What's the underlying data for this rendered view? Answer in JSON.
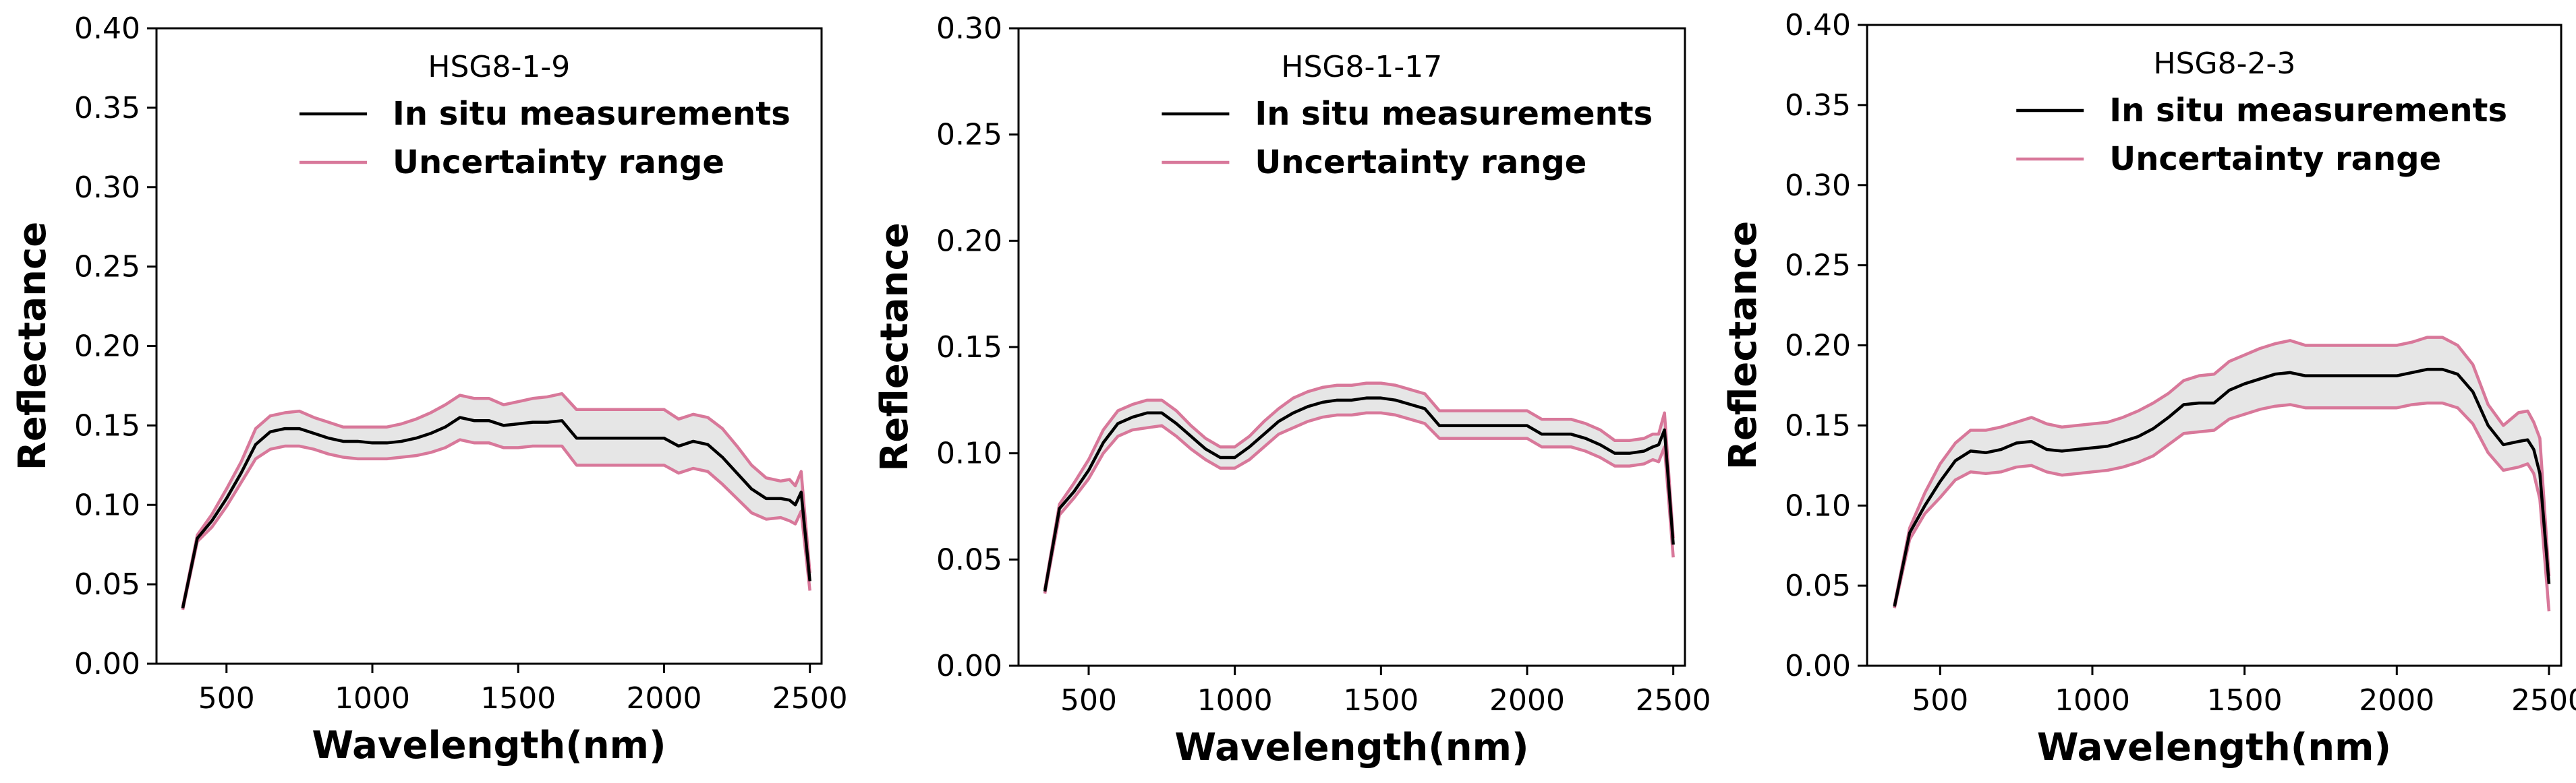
{
  "colors": {
    "measurement": "#000000",
    "uncertainty": "#d8789a",
    "fill": "#e6e6e6"
  },
  "chart_data": [
    {
      "type": "line",
      "title": "HSG8-1-9",
      "xlabel": "Wavelength(nm)",
      "ylabel": "Reflectance",
      "xlim": [
        260,
        2540
      ],
      "ylim": [
        0,
        0.4
      ],
      "xticks": [
        500,
        1000,
        1500,
        2000,
        2500
      ],
      "yticks": [
        0.0,
        0.05,
        0.1,
        0.15,
        0.2,
        0.25,
        0.3,
        0.35,
        0.4
      ],
      "ytick_labels": [
        "0.00",
        "0.05",
        "0.10",
        "0.15",
        "0.20",
        "0.25",
        "0.30",
        "0.35",
        "0.40"
      ],
      "legend": [
        "In situ measurements",
        "Uncertainty range"
      ],
      "legend_position": "top-right",
      "x": [
        350,
        400,
        450,
        500,
        550,
        600,
        650,
        700,
        750,
        800,
        850,
        900,
        950,
        1000,
        1050,
        1100,
        1150,
        1200,
        1250,
        1300,
        1350,
        1400,
        1450,
        1500,
        1550,
        1600,
        1650,
        1700,
        1750,
        1800,
        1850,
        1900,
        1950,
        2000,
        2050,
        2100,
        2150,
        2200,
        2250,
        2300,
        2350,
        2400,
        2430,
        2450,
        2470,
        2500
      ],
      "series": [
        {
          "name": "In situ measurements",
          "values": [
            0.035,
            0.079,
            0.09,
            0.104,
            0.12,
            0.138,
            0.146,
            0.148,
            0.148,
            0.145,
            0.142,
            0.14,
            0.14,
            0.139,
            0.139,
            0.14,
            0.142,
            0.145,
            0.149,
            0.155,
            0.153,
            0.153,
            0.15,
            0.151,
            0.152,
            0.152,
            0.153,
            0.142,
            0.142,
            0.142,
            0.142,
            0.142,
            0.142,
            0.142,
            0.137,
            0.14,
            0.138,
            0.13,
            0.12,
            0.11,
            0.104,
            0.104,
            0.103,
            0.1,
            0.108,
            0.052
          ]
        },
        {
          "name": "Uncertainty upper",
          "values": [
            0.036,
            0.081,
            0.094,
            0.11,
            0.127,
            0.148,
            0.156,
            0.158,
            0.159,
            0.155,
            0.152,
            0.149,
            0.149,
            0.149,
            0.149,
            0.151,
            0.154,
            0.158,
            0.163,
            0.169,
            0.167,
            0.167,
            0.163,
            0.165,
            0.167,
            0.168,
            0.17,
            0.16,
            0.16,
            0.16,
            0.16,
            0.16,
            0.16,
            0.16,
            0.154,
            0.157,
            0.155,
            0.148,
            0.137,
            0.125,
            0.117,
            0.115,
            0.116,
            0.112,
            0.121,
            0.057
          ]
        },
        {
          "name": "Uncertainty lower",
          "values": [
            0.034,
            0.077,
            0.086,
            0.099,
            0.114,
            0.129,
            0.135,
            0.137,
            0.137,
            0.135,
            0.132,
            0.13,
            0.129,
            0.129,
            0.129,
            0.13,
            0.131,
            0.133,
            0.136,
            0.141,
            0.139,
            0.139,
            0.136,
            0.136,
            0.137,
            0.137,
            0.137,
            0.125,
            0.125,
            0.125,
            0.125,
            0.125,
            0.125,
            0.125,
            0.12,
            0.123,
            0.121,
            0.113,
            0.104,
            0.095,
            0.091,
            0.092,
            0.09,
            0.088,
            0.096,
            0.046
          ]
        }
      ]
    },
    {
      "type": "line",
      "title": "HSG8-1-17",
      "xlabel": "Wavelength(nm)",
      "ylabel": "Reflectance",
      "xlim": [
        260,
        2540
      ],
      "ylim": [
        0,
        0.3
      ],
      "xticks": [
        500,
        1000,
        1500,
        2000,
        2500
      ],
      "yticks": [
        0.0,
        0.05,
        0.1,
        0.15,
        0.2,
        0.25,
        0.3
      ],
      "ytick_labels": [
        "0.00",
        "0.05",
        "0.10",
        "0.15",
        "0.20",
        "0.25",
        "0.30"
      ],
      "legend": [
        "In situ measurements",
        "Uncertainty range"
      ],
      "legend_position": "top-right",
      "x": [
        350,
        400,
        450,
        500,
        550,
        600,
        650,
        700,
        750,
        800,
        850,
        900,
        950,
        1000,
        1050,
        1100,
        1150,
        1200,
        1250,
        1300,
        1350,
        1400,
        1450,
        1500,
        1550,
        1600,
        1650,
        1700,
        1750,
        1800,
        1850,
        1900,
        1950,
        2000,
        2050,
        2100,
        2150,
        2200,
        2250,
        2300,
        2350,
        2400,
        2430,
        2450,
        2470,
        2500
      ],
      "series": [
        {
          "name": "In situ measurements",
          "values": [
            0.035,
            0.074,
            0.082,
            0.092,
            0.105,
            0.114,
            0.117,
            0.119,
            0.119,
            0.114,
            0.108,
            0.102,
            0.098,
            0.098,
            0.103,
            0.109,
            0.115,
            0.119,
            0.122,
            0.124,
            0.125,
            0.125,
            0.126,
            0.126,
            0.125,
            0.123,
            0.121,
            0.113,
            0.113,
            0.113,
            0.113,
            0.113,
            0.113,
            0.113,
            0.109,
            0.109,
            0.109,
            0.107,
            0.104,
            0.1,
            0.1,
            0.101,
            0.103,
            0.104,
            0.111,
            0.057
          ]
        },
        {
          "name": "Uncertainty upper",
          "values": [
            0.036,
            0.076,
            0.086,
            0.097,
            0.111,
            0.12,
            0.123,
            0.125,
            0.125,
            0.12,
            0.113,
            0.107,
            0.103,
            0.103,
            0.108,
            0.115,
            0.121,
            0.126,
            0.129,
            0.131,
            0.132,
            0.132,
            0.133,
            0.133,
            0.132,
            0.13,
            0.128,
            0.12,
            0.12,
            0.12,
            0.12,
            0.12,
            0.12,
            0.12,
            0.116,
            0.116,
            0.116,
            0.114,
            0.111,
            0.106,
            0.106,
            0.107,
            0.109,
            0.109,
            0.119,
            0.06
          ]
        },
        {
          "name": "Uncertainty lower",
          "values": [
            0.034,
            0.071,
            0.079,
            0.088,
            0.1,
            0.108,
            0.111,
            0.112,
            0.113,
            0.108,
            0.102,
            0.097,
            0.093,
            0.093,
            0.097,
            0.103,
            0.109,
            0.112,
            0.115,
            0.117,
            0.118,
            0.118,
            0.119,
            0.119,
            0.118,
            0.116,
            0.114,
            0.107,
            0.107,
            0.107,
            0.107,
            0.107,
            0.107,
            0.107,
            0.103,
            0.103,
            0.103,
            0.101,
            0.098,
            0.094,
            0.094,
            0.095,
            0.097,
            0.096,
            0.103,
            0.051
          ]
        }
      ]
    },
    {
      "type": "line",
      "title": "HSG8-2-3",
      "xlabel": "Wavelength(nm)",
      "ylabel": "Reflectance",
      "xlim": [
        260,
        2540
      ],
      "ylim": [
        0,
        0.4
      ],
      "xticks": [
        500,
        1000,
        1500,
        2000,
        2500
      ],
      "yticks": [
        0.0,
        0.05,
        0.1,
        0.15,
        0.2,
        0.25,
        0.3,
        0.35,
        0.4
      ],
      "ytick_labels": [
        "0.00",
        "0.05",
        "0.10",
        "0.15",
        "0.20",
        "0.25",
        "0.30",
        "0.35",
        "0.40"
      ],
      "legend": [
        "In situ measurements",
        "Uncertainty range"
      ],
      "legend_position": "top-right",
      "x": [
        350,
        400,
        450,
        500,
        550,
        600,
        650,
        700,
        750,
        800,
        850,
        900,
        950,
        1000,
        1050,
        1100,
        1150,
        1200,
        1250,
        1300,
        1350,
        1400,
        1450,
        1500,
        1550,
        1600,
        1650,
        1700,
        1750,
        1800,
        1850,
        1900,
        1950,
        2000,
        2050,
        2100,
        2150,
        2200,
        2250,
        2300,
        2350,
        2400,
        2430,
        2450,
        2470,
        2500
      ],
      "series": [
        {
          "name": "In situ measurements",
          "values": [
            0.037,
            0.083,
            0.1,
            0.115,
            0.128,
            0.134,
            0.133,
            0.135,
            0.139,
            0.14,
            0.135,
            0.134,
            0.135,
            0.136,
            0.137,
            0.14,
            0.143,
            0.148,
            0.155,
            0.163,
            0.164,
            0.164,
            0.172,
            0.176,
            0.179,
            0.182,
            0.183,
            0.181,
            0.181,
            0.181,
            0.181,
            0.181,
            0.181,
            0.181,
            0.183,
            0.185,
            0.185,
            0.182,
            0.171,
            0.15,
            0.138,
            0.14,
            0.141,
            0.135,
            0.12,
            0.051
          ]
        },
        {
          "name": "Uncertainty upper",
          "values": [
            0.038,
            0.086,
            0.108,
            0.126,
            0.139,
            0.147,
            0.147,
            0.149,
            0.152,
            0.155,
            0.151,
            0.149,
            0.15,
            0.151,
            0.152,
            0.155,
            0.159,
            0.164,
            0.17,
            0.178,
            0.181,
            0.182,
            0.19,
            0.194,
            0.198,
            0.201,
            0.203,
            0.2,
            0.2,
            0.2,
            0.2,
            0.2,
            0.2,
            0.2,
            0.202,
            0.205,
            0.205,
            0.2,
            0.188,
            0.163,
            0.15,
            0.158,
            0.159,
            0.152,
            0.142,
            0.056
          ]
        },
        {
          "name": "Uncertainty lower",
          "values": [
            0.036,
            0.079,
            0.095,
            0.105,
            0.116,
            0.121,
            0.12,
            0.121,
            0.124,
            0.125,
            0.121,
            0.119,
            0.12,
            0.121,
            0.122,
            0.124,
            0.127,
            0.131,
            0.138,
            0.145,
            0.146,
            0.147,
            0.154,
            0.157,
            0.16,
            0.162,
            0.163,
            0.161,
            0.161,
            0.161,
            0.161,
            0.161,
            0.161,
            0.161,
            0.163,
            0.164,
            0.164,
            0.161,
            0.151,
            0.133,
            0.122,
            0.124,
            0.126,
            0.12,
            0.104,
            0.034
          ]
        }
      ]
    }
  ]
}
